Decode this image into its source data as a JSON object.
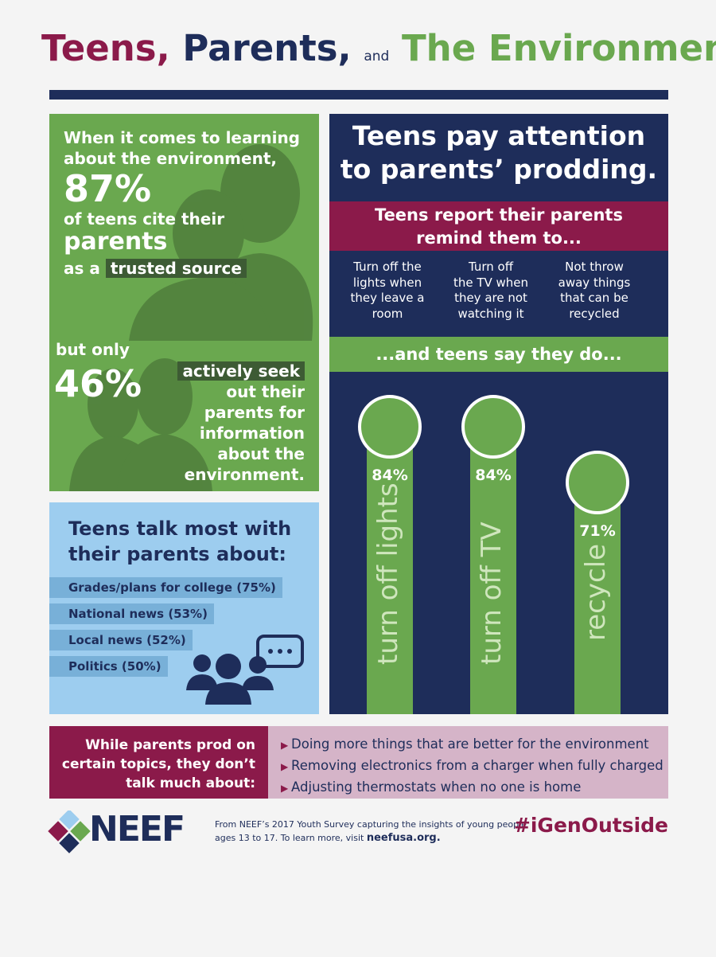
{
  "header": {
    "title_parts": [
      "Teens,",
      "Parents,",
      "and",
      "The Environment"
    ]
  },
  "green_panel": {
    "intro_lines": [
      "When it comes to learning",
      "about the environment,"
    ],
    "stat_1": "87%",
    "line_1": "of teens cite their",
    "emphasis_1": "parents",
    "line_2": "as a",
    "highlight_1": "trusted source",
    "lead_2": "but only",
    "stat_2": "46%",
    "highlight_2": "actively seek",
    "rest_lines": [
      "out their",
      "parents for",
      "information",
      "about the",
      "environment."
    ]
  },
  "blue_panel": {
    "title_lines": [
      "Teens talk most with",
      "their parents about:"
    ],
    "topics": [
      "Grades/plans for college (75%)",
      "National news (53%)",
      "Local news (52%)",
      "Politics (50%)"
    ]
  },
  "navy_panel": {
    "title_lines": [
      "Teens pay attention",
      "to parents’ prodding."
    ],
    "subtitle_lines": [
      "Teens report their parents",
      "remind them to..."
    ],
    "reminders": [
      [
        "Turn off the",
        "lights when",
        "they leave a",
        "room"
      ],
      [
        "Turn off",
        "the TV when",
        "they are not",
        "watching it"
      ],
      [
        "Not throw",
        "away things",
        "that can be",
        "recycled"
      ]
    ],
    "band_text": "...and teens say they do...",
    "actions": [
      {
        "label": "turn off lights",
        "percent": "84%"
      },
      {
        "label": "turn off TV",
        "percent": "84%"
      },
      {
        "label": "recycle",
        "percent": "71%"
      }
    ]
  },
  "bottom": {
    "lead_lines": [
      "While parents prod on",
      "certain topics, they don’t",
      "talk much about:"
    ],
    "items": [
      "Doing more things that are better for the environment",
      "Removing electronics from a charger when fully charged",
      "Adjusting thermostats when no one is home"
    ]
  },
  "footer": {
    "logo": "NEEF",
    "source_lines": [
      "From NEEF’s 2017 Youth Survey capturing the insights of young people",
      "ages 13 to 17. To learn more, visit"
    ],
    "link": "neefusa.org.",
    "hashtag": "#iGenOutside"
  }
}
